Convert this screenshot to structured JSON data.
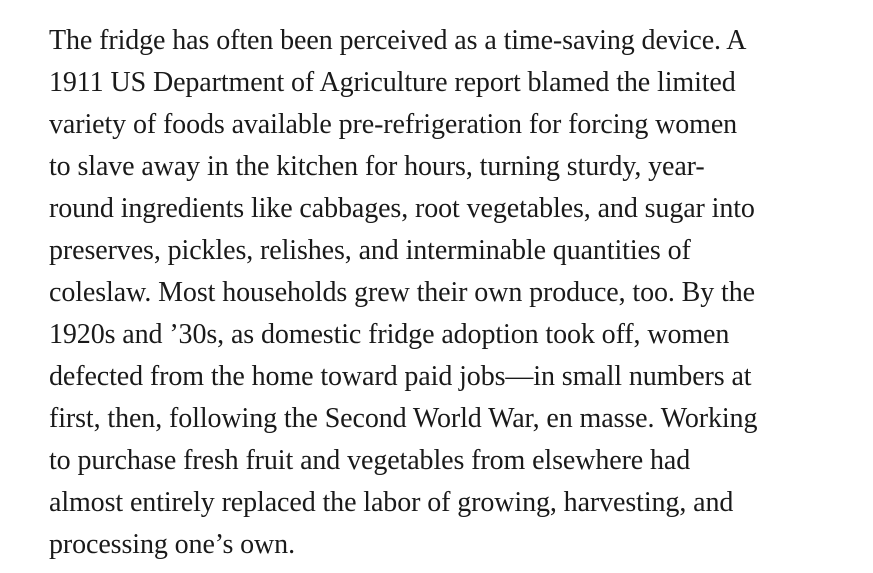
{
  "article": {
    "lines": [
      "The fridge has often been perceived as a time-saving device. A",
      "1911 US Department of Agriculture report blamed the limited",
      "variety of foods available pre-refrigeration for forcing women",
      "to slave away in the kitchen for hours, turning sturdy, year-",
      "round ingredients like cabbages, root vegetables, and sugar into",
      "preserves, pickles, relishes, and interminable quantities of",
      "coleslaw. Most households grew their own produce, too. By the",
      "1920s and ’30s, as domestic fridge adoption took off, women",
      "defected from the home toward paid jobs—in small numbers at",
      "first, then, following the Second World War, en masse. Working",
      "to purchase fresh fruit and vegetables from elsewhere had",
      "almost entirely replaced the labor of growing, harvesting, and",
      "processing one’s own."
    ]
  }
}
